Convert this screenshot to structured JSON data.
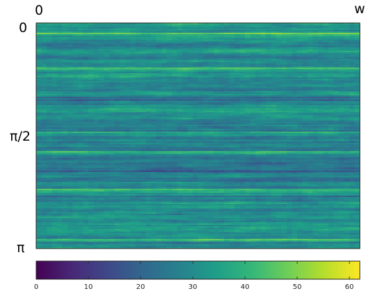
{
  "chart_data": {
    "type": "heatmap",
    "title": "",
    "x_axis": {
      "top_left_label": "0",
      "top_right_label": "w"
    },
    "y_axis": {
      "ticks": [
        {
          "value": 0,
          "label": "0"
        },
        {
          "value": 0.5,
          "label": "π/2"
        },
        {
          "value": 1,
          "label": "π"
        }
      ],
      "range": [
        0,
        3.14159
      ]
    },
    "colorbar": {
      "colormap": "viridis",
      "range": [
        0,
        62
      ],
      "ticks": [
        {
          "value": 0,
          "label": "0"
        },
        {
          "value": 10,
          "label": "10"
        },
        {
          "value": 20,
          "label": "20"
        },
        {
          "value": 30,
          "label": "30"
        },
        {
          "value": 40,
          "label": "40"
        },
        {
          "value": 50,
          "label": "50"
        },
        {
          "value": 60,
          "label": "60"
        }
      ]
    },
    "value_distribution": {
      "mean": 31,
      "typical_range": [
        15,
        48
      ],
      "min": 0,
      "max": 62
    },
    "grid": false,
    "legend": "colorbar-bottom",
    "colors": {
      "viridis_stops": [
        "#440154",
        "#482878",
        "#3e4989",
        "#31688e",
        "#26828e",
        "#1f9e89",
        "#35b779",
        "#6ece58",
        "#b5de2b",
        "#fde725"
      ]
    }
  }
}
